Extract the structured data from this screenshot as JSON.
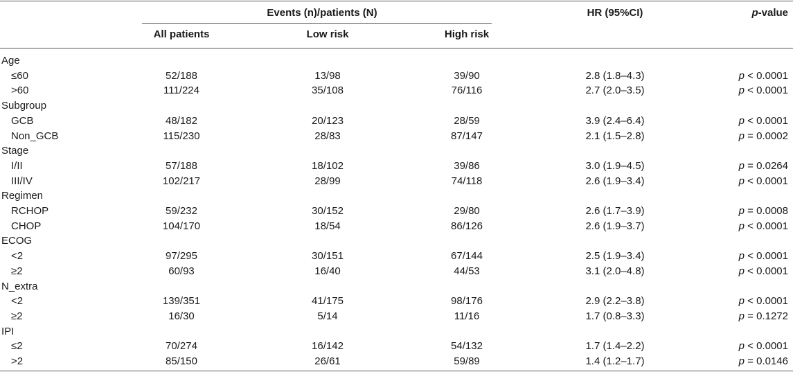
{
  "header": {
    "group": "Events (n)/patients (N)",
    "all": "All patients",
    "low": "Low risk",
    "high": "High risk",
    "hr": "HR (95%CI)",
    "p_italic": "p",
    "p_rest": "-value"
  },
  "rows": [
    {
      "type": "group",
      "label": "Age"
    },
    {
      "type": "data",
      "label": "≤60",
      "all": "52/188",
      "low": "13/98",
      "high": "39/90",
      "hr": "2.8 (1.8–4.3)",
      "p": "p",
      "pv": " < 0.0001"
    },
    {
      "type": "data",
      "label": ">60",
      "all": "111/224",
      "low": "35/108",
      "high": "76/116",
      "hr": "2.7 (2.0–3.5)",
      "p": "p",
      "pv": " < 0.0001"
    },
    {
      "type": "group",
      "label": "Subgroup"
    },
    {
      "type": "data",
      "label": "GCB",
      "all": "48/182",
      "low": "20/123",
      "high": "28/59",
      "hr": "3.9 (2.4–6.4)",
      "p": "p",
      "pv": " < 0.0001"
    },
    {
      "type": "data",
      "label": "Non_GCB",
      "all": "115/230",
      "low": "28/83",
      "high": "87/147",
      "hr": "2.1 (1.5–2.8)",
      "p": "p",
      "pv": " = 0.0002"
    },
    {
      "type": "group",
      "label": "Stage"
    },
    {
      "type": "data",
      "label": "I/II",
      "all": "57/188",
      "low": "18/102",
      "high": "39/86",
      "hr": "3.0 (1.9–4.5)",
      "p": "p",
      "pv": " = 0.0264"
    },
    {
      "type": "data",
      "label": "III/IV",
      "all": "102/217",
      "low": "28/99",
      "high": "74/118",
      "hr": "2.6 (1.9–3.4)",
      "p": "p",
      "pv": " < 0.0001"
    },
    {
      "type": "group",
      "label": "Regimen"
    },
    {
      "type": "data",
      "label": "RCHOP",
      "all": "59/232",
      "low": "30/152",
      "high": "29/80",
      "hr": "2.6 (1.7–3.9)",
      "p": "p",
      "pv": " = 0.0008"
    },
    {
      "type": "data",
      "label": "CHOP",
      "all": "104/170",
      "low": "18/54",
      "high": "86/126",
      "hr": "2.6 (1.9–3.7)",
      "p": "p",
      "pv": " < 0.0001"
    },
    {
      "type": "group",
      "label": "ECOG"
    },
    {
      "type": "data",
      "label": "<2",
      "all": "97/295",
      "low": "30/151",
      "high": "67/144",
      "hr": "2.5 (1.9–3.4)",
      "p": "p",
      "pv": " < 0.0001"
    },
    {
      "type": "data",
      "label": "≥2",
      "all": "60/93",
      "low": "16/40",
      "high": "44/53",
      "hr": "3.1 (2.0–4.8)",
      "p": "p",
      "pv": " < 0.0001"
    },
    {
      "type": "group",
      "label": "N_extra"
    },
    {
      "type": "data",
      "label": "<2",
      "all": "139/351",
      "low": "41/175",
      "high": "98/176",
      "hr": "2.9 (2.2–3.8)",
      "p": "p",
      "pv": " < 0.0001"
    },
    {
      "type": "data",
      "label": "≥2",
      "all": "16/30",
      "low": "5/14",
      "high": "11/16",
      "hr": "1.7 (0.8–3.3)",
      "p": "p",
      "pv": " = 0.1272"
    },
    {
      "type": "group",
      "label": "IPI"
    },
    {
      "type": "data",
      "label": "≤2",
      "all": "70/274",
      "low": "16/142",
      "high": "54/132",
      "hr": "1.7 (1.4–2.2)",
      "p": "p",
      "pv": " < 0.0001"
    },
    {
      "type": "data",
      "label": ">2",
      "all": "85/150",
      "low": "26/61",
      "high": "59/89",
      "hr": "1.4 (1.2–1.7)",
      "p": "p",
      "pv": " = 0.0146"
    }
  ]
}
